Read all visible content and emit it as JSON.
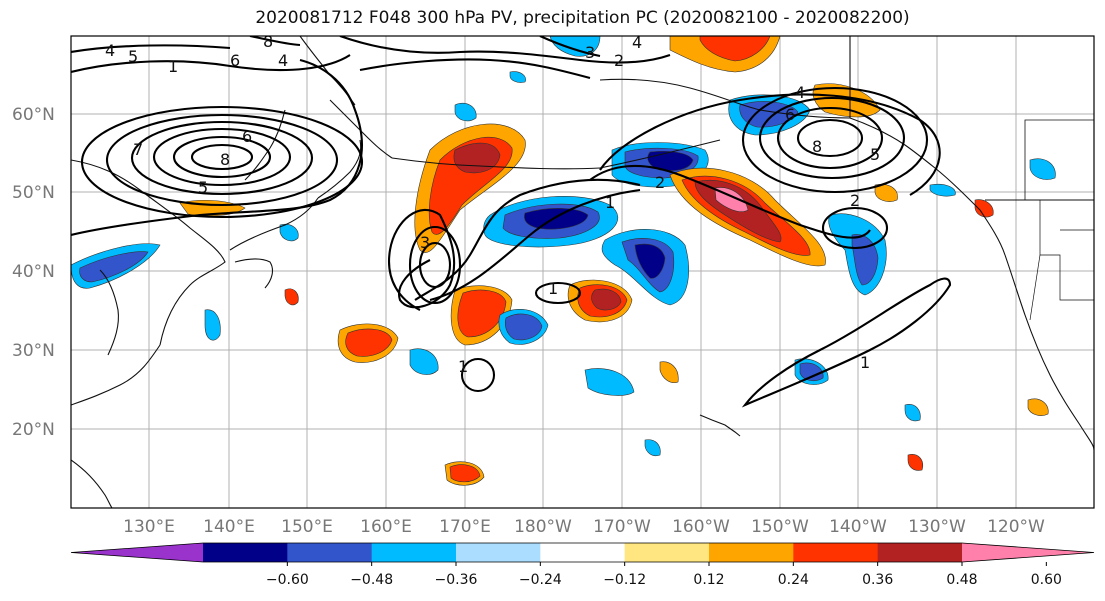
{
  "title": "2020081712 F048 300 hPa PV, precipitation PC (2020082100 - 2020082200)",
  "lat_labels": [
    "60°N",
    "50°N",
    "40°N",
    "30°N",
    "20°N"
  ],
  "lon_labels": [
    "130°E",
    "140°E",
    "150°E",
    "160°E",
    "170°E",
    "180°W",
    "170°W",
    "160°W",
    "150°W",
    "140°W",
    "130°W",
    "120°W"
  ],
  "colorbar": {
    "ticks": [
      "−0.60",
      "−0.48",
      "−0.36",
      "−0.24",
      "−0.12",
      "0.12",
      "0.24",
      "0.36",
      "0.48",
      "0.60"
    ],
    "colors": [
      "#9933cc",
      "#000088",
      "#3355cc",
      "#00bbff",
      "#aaddff",
      "#ffffff",
      "#ffe680",
      "#ffa500",
      "#ff3300",
      "#b22222",
      "#ff80aa"
    ]
  },
  "contour_labels": [
    "4",
    "5",
    "6",
    "8",
    "1",
    "6",
    "7",
    "8",
    "5",
    "4",
    "3",
    "4",
    "2",
    "3",
    "1",
    "1",
    "1",
    "2",
    "4",
    "8",
    "5",
    "6",
    "2",
    "1"
  ]
}
